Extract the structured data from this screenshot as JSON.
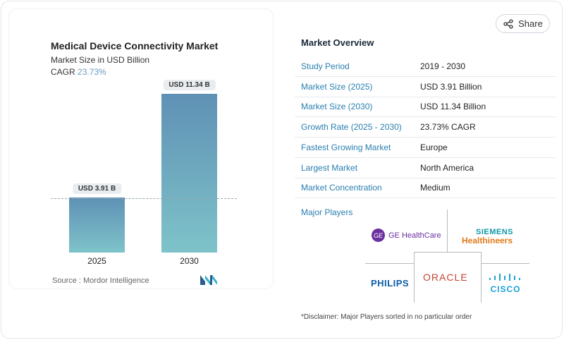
{
  "share_label": "Share",
  "chart_data": {
    "type": "bar",
    "title": "Medical Device Connectivity Market",
    "subtitle": "Market Size in USD Billion",
    "cagr_label": "CAGR",
    "cagr_value": "23.73%",
    "categories": [
      "2025",
      "2030"
    ],
    "values": [
      3.91,
      11.34
    ],
    "data_labels": [
      "USD 3.91 B",
      "USD 11.34 B"
    ],
    "colors": {
      "bar_top": "#5f91b5",
      "bar_bottom": "#7ec3c9"
    }
  },
  "source": "Source :  Mordor Intelligence",
  "overview": {
    "title": "Market Overview",
    "rows": [
      {
        "label": "Study Period",
        "value": "2019 - 2030"
      },
      {
        "label": "Market Size (2025)",
        "value": "USD 3.91 Billion"
      },
      {
        "label": "Market Size (2030)",
        "value": "USD 11.34 Billion"
      },
      {
        "label": "Growth Rate (2025 - 2030)",
        "value": "23.73% CAGR"
      },
      {
        "label": "Fastest Growing Market",
        "value": "Europe"
      },
      {
        "label": "Largest Market",
        "value": "North America"
      },
      {
        "label": "Market Concentration",
        "value": "Medium"
      }
    ],
    "major_players_label": "Major Players",
    "players": [
      "GE HealthCare",
      "SIEMENS",
      "Healthineers",
      "PHILIPS",
      "ORACLE",
      "CISCO"
    ],
    "disclaimer": "*Disclaimer: Major Players sorted in no particular order"
  }
}
